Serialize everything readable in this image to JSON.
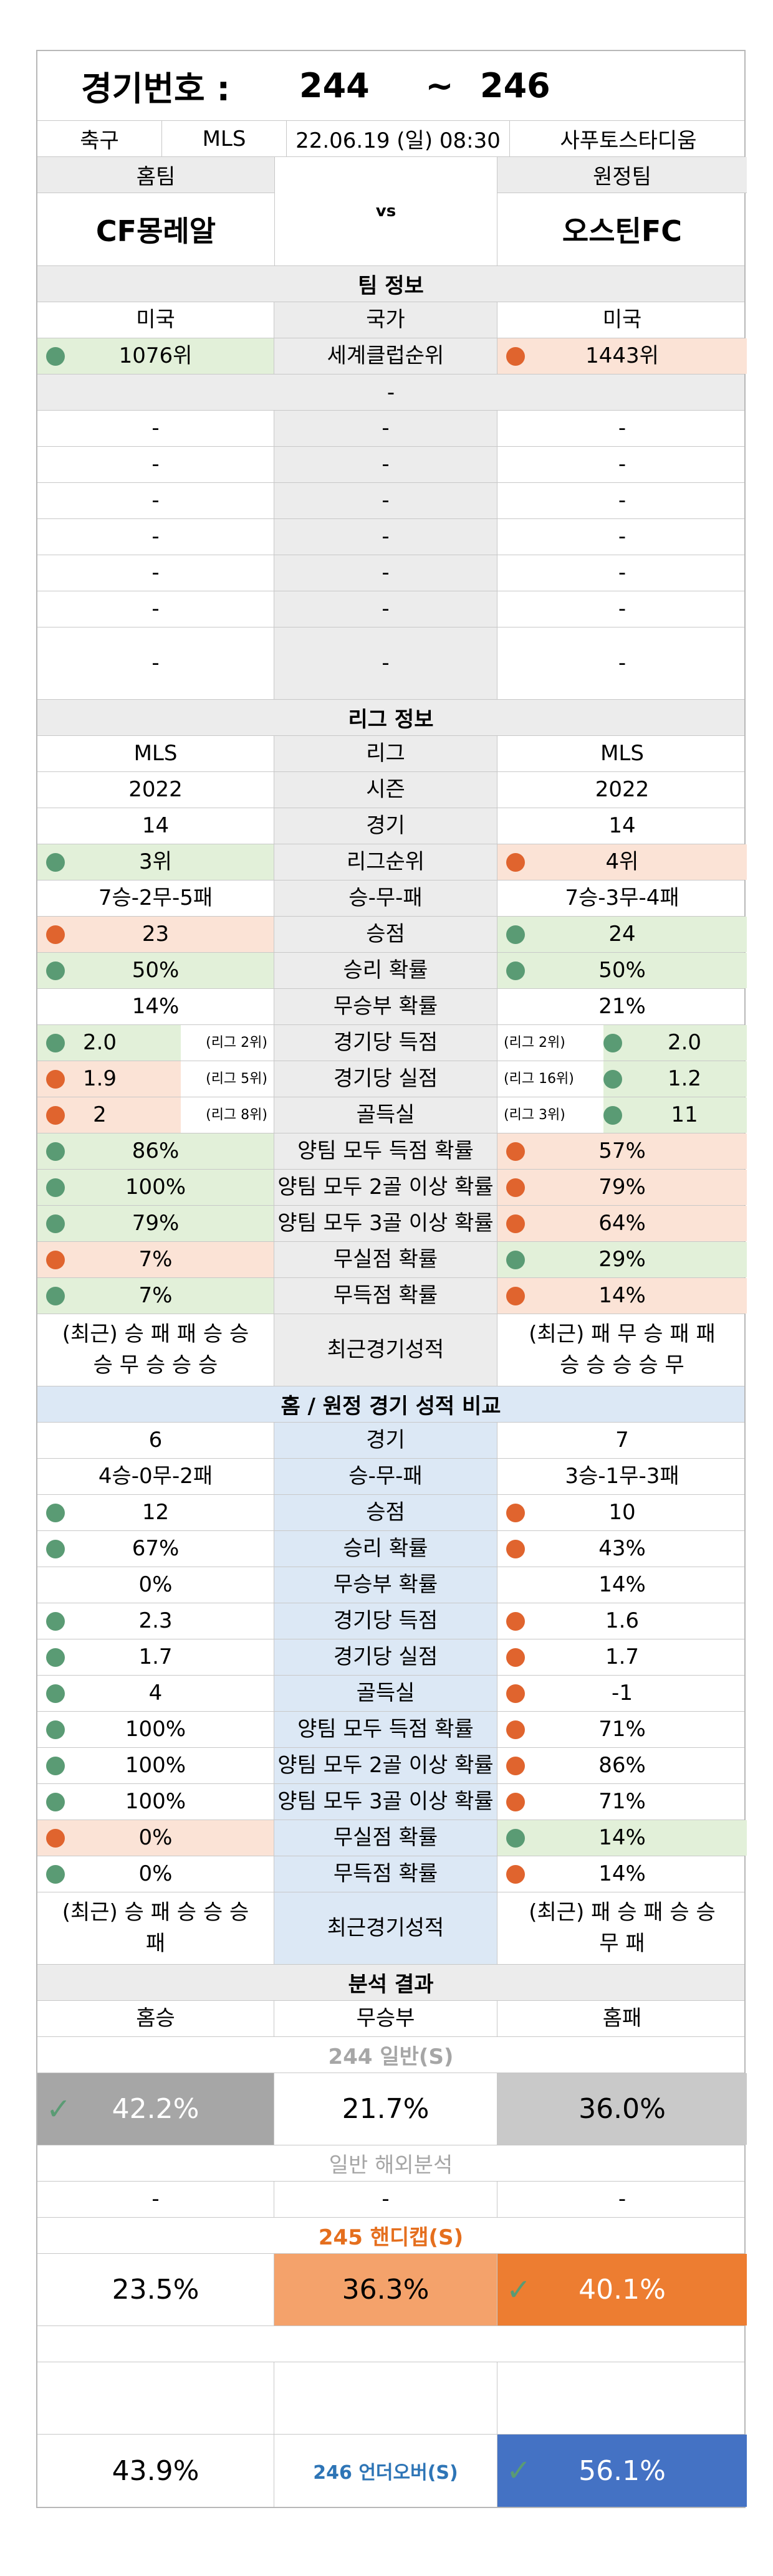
{
  "header": {
    "label": "경기번호 :",
    "num_from": "244",
    "tilde": "~",
    "num_to": "246"
  },
  "meta": {
    "sport": "축구",
    "league": "MLS",
    "datetime": "22.06.19 (일) 08:30",
    "venue": "사푸토스타디움"
  },
  "teams": {
    "home_caption": "홈팀",
    "away_caption": "원정팀",
    "home": "CF몽레알",
    "vs": "vs",
    "away": "오스틴FC"
  },
  "team_info": {
    "title": "팀 정보",
    "country": {
      "home": "미국",
      "label": "국가",
      "away": "미국"
    },
    "club_rank": {
      "home": "1076위",
      "label": "세계클럽순위",
      "away": "1443위"
    },
    "sub_dash": "-",
    "dash_rows": [
      [
        "-",
        "-",
        "-"
      ],
      [
        "-",
        "-",
        "-"
      ],
      [
        "-",
        "-",
        "-"
      ],
      [
        "-",
        "-",
        "-"
      ],
      [
        "-",
        "-",
        "-"
      ],
      [
        "-",
        "-",
        "-"
      ],
      [
        "-",
        "-",
        "-"
      ]
    ]
  },
  "league_info": {
    "title": "리그 정보",
    "rows": [
      {
        "home": "MLS",
        "label": "리그",
        "away": "MLS"
      },
      {
        "home": "2022",
        "label": "시즌",
        "away": "2022"
      },
      {
        "home": "14",
        "label": "경기",
        "away": "14"
      },
      {
        "home": "3위",
        "label": "리그순위",
        "away": "4위"
      },
      {
        "home": "7승-2무-5패",
        "label": "승-무-패",
        "away": "7승-3무-4패"
      },
      {
        "home": "23",
        "label": "승점",
        "away": "24"
      },
      {
        "home": "50%",
        "label": "승리 확률",
        "away": "50%"
      },
      {
        "home": "14%",
        "label": "무승부 확률",
        "away": "21%"
      },
      {
        "home": "2.0",
        "home_rank": "(리그 2위)",
        "label": "경기당 득점",
        "away": "2.0",
        "away_rank": "(리그 2위)"
      },
      {
        "home": "1.9",
        "home_rank": "(리그 5위)",
        "label": "경기당 실점",
        "away": "1.2",
        "away_rank": "(리그 16위)"
      },
      {
        "home": "2",
        "home_rank": "(리그 8위)",
        "label": "골득실",
        "away": "11",
        "away_rank": "(리그 3위)"
      },
      {
        "home": "86%",
        "label": "양팀 모두 득점 확률",
        "away": "57%"
      },
      {
        "home": "100%",
        "label": "양팀 모두 2골 이상 확률",
        "away": "79%"
      },
      {
        "home": "79%",
        "label": "양팀 모두 3골 이상 확률",
        "away": "64%"
      },
      {
        "home": "7%",
        "label": "무실점 확률",
        "away": "29%"
      },
      {
        "home": "7%",
        "label": "무득점 확률",
        "away": "14%"
      }
    ],
    "recent": {
      "home_l1": "(최근) 승 패 패 승 승",
      "home_l2": "승 무 승 승 승",
      "label": "최근경기성적",
      "away_l1": "(최근) 패 무 승 패 패",
      "away_l2": "승 승 승 승 무"
    }
  },
  "home_away": {
    "title": "홈 / 원정 경기 성적 비교",
    "rows": [
      {
        "home": "6",
        "label": "경기",
        "away": "7"
      },
      {
        "home": "4승-0무-2패",
        "label": "승-무-패",
        "away": "3승-1무-3패"
      },
      {
        "home": "12",
        "label": "승점",
        "away": "10"
      },
      {
        "home": "67%",
        "label": "승리 확률",
        "away": "43%"
      },
      {
        "home": "0%",
        "label": "무승부 확률",
        "away": "14%"
      },
      {
        "home": "2.3",
        "label": "경기당 득점",
        "away": "1.6"
      },
      {
        "home": "1.7",
        "label": "경기당 실점",
        "away": "1.7"
      },
      {
        "home": "4",
        "label": "골득실",
        "away": "-1"
      },
      {
        "home": "100%",
        "label": "양팀 모두 득점 확률",
        "away": "71%"
      },
      {
        "home": "100%",
        "label": "양팀 모두 2골 이상 확률",
        "away": "86%"
      },
      {
        "home": "100%",
        "label": "양팀 모두 3골 이상 확률",
        "away": "71%"
      },
      {
        "home": "0%",
        "label": "무실점 확률",
        "away": "14%"
      },
      {
        "home": "0%",
        "label": "무득점 확률",
        "away": "14%"
      }
    ],
    "recent": {
      "home_l1": "(최근) 승 패 승 승 승",
      "home_l2": "패",
      "label": "최근경기성적",
      "away_l1": "(최근) 패 승 패 승 승",
      "away_l2": "무 패"
    }
  },
  "analysis": {
    "title": "분석 결과",
    "cols": {
      "home_win": "홈승",
      "draw": "무승부",
      "home_loss": "홈패"
    },
    "normal": {
      "title": "244 일반(S)",
      "home": "42.2%",
      "draw": "21.7%",
      "away": "36.0%"
    },
    "overseas": {
      "title": "일반 해외분석",
      "home": "-",
      "draw": "-",
      "away": "-"
    },
    "handicap": {
      "title": "245 핸디캡(S)",
      "home": "23.5%",
      "draw": "36.3%",
      "away": "40.1%"
    },
    "underover": {
      "label": "246 언더오버(S)",
      "under": "43.9%",
      "over": "56.1%"
    }
  },
  "colors": {
    "green_bg": "#e2f0d9",
    "orange_bg": "#fbe3d6",
    "green_dot": "#5a9b74",
    "orange_dot": "#e0642e",
    "gray_cell": "#a6a6a6",
    "light_gray_cell": "#c9c9c9",
    "light_orange": "#f4a26b",
    "deep_orange": "#ed7d31",
    "blue": "#4472c4"
  },
  "icons": {
    "check": "check-icon"
  }
}
